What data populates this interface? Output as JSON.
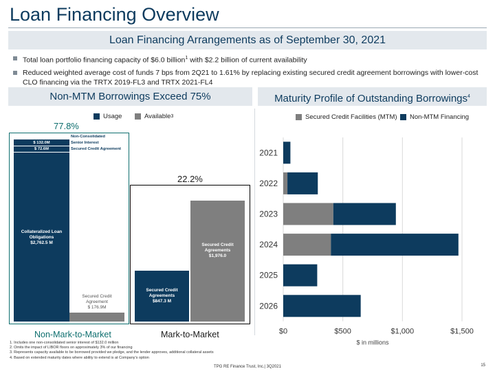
{
  "page": {
    "title": "Loan Financing Overview",
    "main_header": "Loan Financing Arrangements as of September 30, 2021",
    "bullets": [
      {
        "text": "Total loan portfolio financing capacity of $6.0 billion",
        "sup": "1",
        "after": " with $2.2 billion of current availability"
      },
      {
        "text": "Reduced weighted average cost of funds 7 bps from 2Q21 to 1.61% by replacing existing secured credit agreement borrowings with lower-cost CLO financing via the TRTX 2019-FL3 and TRTX 2021-FL4",
        "sup": "",
        "after": ""
      }
    ],
    "left_header": "Non-MTM Borrowings Exceed 75%",
    "right_header": "Maturity Profile of Outstanding Borrowings",
    "right_header_sup": "4",
    "footnotes": [
      "1. Includes one non-consolidated senior interest of $132.0 million",
      "2. Omits the impact of LIBOR floors on approximately 3% of our financing",
      "3. Represents capacity available to be borrowed provided we pledge, and the lender approves, additional collateral assets",
      "4. Based on extended maturity dates where ability to extend is at Company's option"
    ],
    "footer": "TPG RE Finance Trust, Inc.| 3Q2021",
    "page_number": "15"
  },
  "colors": {
    "navy": "#0d3b5e",
    "gray": "#7f7f7f",
    "header_bg": "#e3e8ed",
    "teal": "#0d6e6e"
  },
  "chart_data": [
    {
      "type": "bar",
      "stacked": true,
      "legend": {
        "position": "top",
        "entries": [
          "Usage",
          "Available"
        ],
        "sup": [
          "",
          "3"
        ]
      },
      "groups": [
        {
          "name": "Non-Mark-to-Market",
          "percent": "77.8%",
          "bars": [
            {
              "segments": [
                {
                  "series": "Usage",
                  "label": "Collateralized Loan Obligations\n$2,762.5 M",
                  "value": 2762.5
                },
                {
                  "series": "Usage",
                  "label": "$ 72.6M",
                  "value": 72.6,
                  "annotation": "Secured Credit Agreement"
                },
                {
                  "series": "Usage",
                  "label": "$ 132.0M",
                  "value": 132.0,
                  "annotation": "Non-Consolidated\nSenior Interest"
                }
              ]
            },
            {
              "segments": [
                {
                  "series": "Available",
                  "label": "Secured Credit\nAgreement\n$ 176.9M",
                  "value": 176.9
                }
              ]
            }
          ]
        },
        {
          "name": "Mark-to-Market",
          "percent": "22.2%",
          "bars": [
            {
              "segments": [
                {
                  "series": "Usage",
                  "label": "Secured Credit\nAgreements\n$847.3 M",
                  "value": 847.3
                }
              ]
            },
            {
              "segments": [
                {
                  "series": "Available",
                  "label": "Secured Credit\nAgreements\n$1,976.0",
                  "value": 1976.0
                }
              ]
            }
          ]
        }
      ]
    },
    {
      "type": "bar",
      "orientation": "horizontal",
      "stacked": true,
      "categories": [
        "2021",
        "2022",
        "2023",
        "2024",
        "2025",
        "2026"
      ],
      "series": [
        {
          "name": "Secured Credit Facilities (MTM)",
          "values": [
            0,
            35,
            420,
            400,
            0,
            0
          ]
        },
        {
          "name": "Non-MTM Financing",
          "values": [
            60,
            255,
            525,
            1070,
            285,
            650
          ]
        }
      ],
      "xlim": [
        0,
        1500
      ],
      "xticks": [
        "$0",
        "$500",
        "$1,000",
        "$1,500"
      ],
      "xlabel": "$ in millions",
      "legend": "top"
    }
  ]
}
